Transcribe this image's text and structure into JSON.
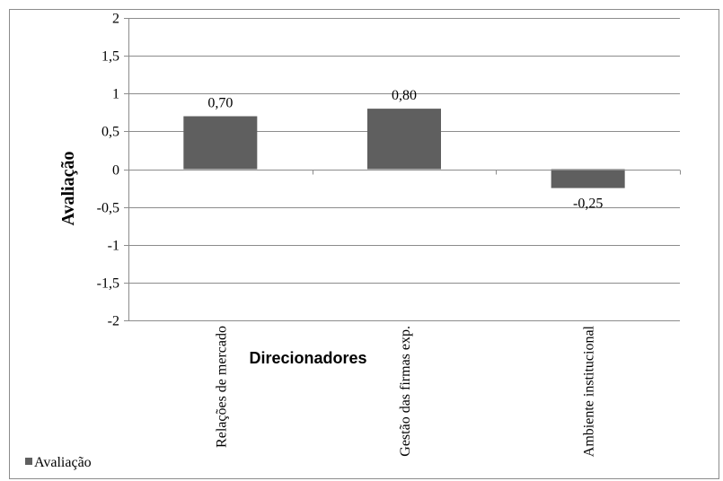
{
  "chart_data": {
    "type": "bar",
    "categories": [
      "Relações de mercado",
      "Gestão das firmas exp.",
      "Ambiente institucional"
    ],
    "series": [
      {
        "name": "Avaliação",
        "values": [
          0.7,
          0.8,
          -0.25
        ],
        "labels": [
          "0,70",
          "0,80",
          "-0,25"
        ]
      }
    ],
    "ylabel": "Avaliação",
    "xlabel": "Direcionadores",
    "ylim": [
      -2,
      2
    ],
    "yticks": [
      2,
      1.5,
      1,
      0.5,
      0,
      -0.5,
      -1,
      -1.5,
      -2
    ],
    "ytick_labels": [
      "2",
      "1,5",
      "1",
      "0,5",
      "0",
      "-0,5",
      "-1",
      "-1,5",
      "-2"
    ],
    "grid": true,
    "legend_position": "bottom-left",
    "bar_color": "#5f5f5f",
    "grid_color": "#8c8c8c"
  }
}
